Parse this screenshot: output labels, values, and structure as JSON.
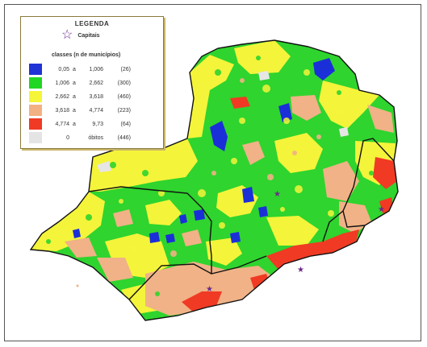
{
  "legend": {
    "title": "LEGENDA",
    "capital_label": "Capitais",
    "classes_title": "classes (n de municípios)",
    "classes": [
      {
        "color": "#1f33d6",
        "from": "0,05",
        "sep": "a",
        "to": "1,006",
        "count": "(26)"
      },
      {
        "color": "#22d624",
        "from": "1,006",
        "sep": "a",
        "to": "2,662",
        "count": "(300)"
      },
      {
        "color": "#f5f53a",
        "from": "2,662",
        "sep": "a",
        "to": "3,618",
        "count": "(460)"
      },
      {
        "color": "#f2b183",
        "from": "3,618",
        "sep": "a",
        "to": "4,774",
        "count": "(223)"
      },
      {
        "color": "#f03a24",
        "from": "4,774",
        "sep": "a",
        "to": "9,73",
        "count": "(64)"
      },
      {
        "color": "#e4e4e4",
        "from": "0",
        "sep": "",
        "to": "óbitos",
        "count": "(446)"
      }
    ]
  }
}
